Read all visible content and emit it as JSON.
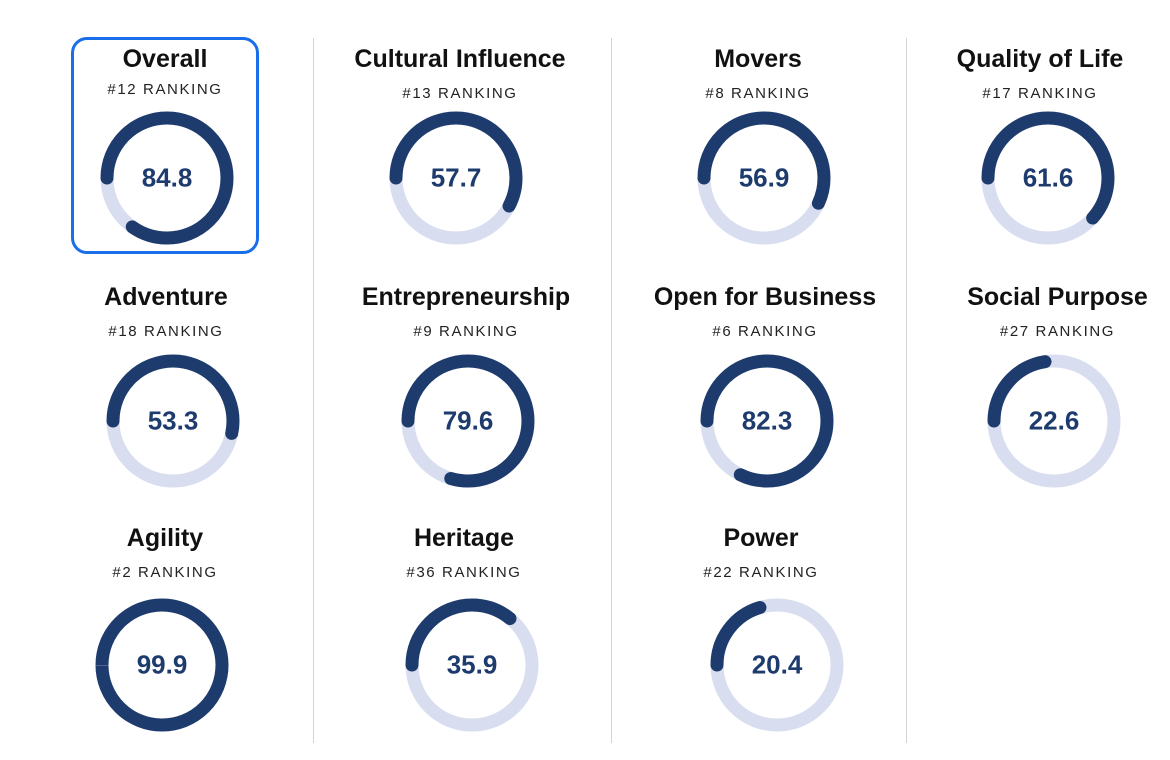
{
  "colors": {
    "track": "#d8deef",
    "progress": "#1e3b6d",
    "value_text": "#1e3b6d",
    "selected_border": "#1a6eea",
    "divider": "#d4d4d4"
  },
  "cards": [
    {
      "title": "Overall",
      "ranking": "#12 RANKING",
      "score": "84.8",
      "progress": 0.848,
      "selected": true
    },
    {
      "title": "Cultural Influence",
      "ranking": "#13 RANKING",
      "score": "57.7",
      "progress": 0.577
    },
    {
      "title": "Movers",
      "ranking": "#8 RANKING",
      "score": "56.9",
      "progress": 0.569
    },
    {
      "title": "Quality of Life",
      "ranking": "#17 RANKING",
      "score": "61.6",
      "progress": 0.616
    },
    {
      "title": "Adventure",
      "ranking": "#18 RANKING",
      "score": "53.3",
      "progress": 0.533
    },
    {
      "title": "Entrepreneurship",
      "ranking": "#9 RANKING",
      "score": "79.6",
      "progress": 0.796
    },
    {
      "title": "Open for Business",
      "ranking": "#6 RANKING",
      "score": "82.3",
      "progress": 0.823
    },
    {
      "title": "Social Purpose",
      "ranking": "#27 RANKING",
      "score": "22.6",
      "progress": 0.226
    },
    {
      "title": "Agility",
      "ranking": "#2 RANKING",
      "score": "99.9",
      "progress": 0.999
    },
    {
      "title": "Heritage",
      "ranking": "#36 RANKING",
      "score": "35.9",
      "progress": 0.359
    },
    {
      "title": "Power",
      "ranking": "#22 RANKING",
      "score": "20.4",
      "progress": 0.204
    }
  ]
}
